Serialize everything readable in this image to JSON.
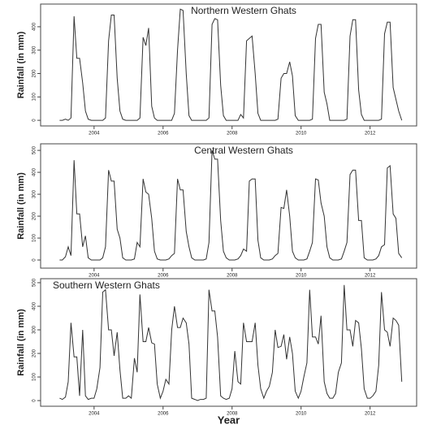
{
  "chart_data": [
    {
      "type": "line",
      "title": "Northern Western Ghats",
      "y_label": "Rainfall (in mm)",
      "color": "#333333",
      "x": [
        2003,
        2003.08,
        2003.17,
        2003.25,
        2003.33,
        2003.42,
        2003.5,
        2003.58,
        2003.67,
        2003.75,
        2003.83,
        2003.92,
        2004,
        2004.08,
        2004.17,
        2004.25,
        2004.33,
        2004.42,
        2004.5,
        2004.58,
        2004.67,
        2004.75,
        2004.83,
        2004.92,
        2005,
        2005.08,
        2005.17,
        2005.25,
        2005.33,
        2005.42,
        2005.5,
        2005.58,
        2005.67,
        2005.75,
        2005.83,
        2005.92,
        2006,
        2006.08,
        2006.17,
        2006.25,
        2006.33,
        2006.42,
        2006.5,
        2006.58,
        2006.67,
        2006.75,
        2006.83,
        2006.92,
        2007,
        2007.08,
        2007.17,
        2007.25,
        2007.33,
        2007.42,
        2007.5,
        2007.58,
        2007.67,
        2007.75,
        2007.83,
        2007.92,
        2008,
        2008.08,
        2008.17,
        2008.25,
        2008.33,
        2008.42,
        2008.5,
        2008.58,
        2008.67,
        2008.75,
        2008.83,
        2008.92,
        2009,
        2009.08,
        2009.17,
        2009.25,
        2009.33,
        2009.42,
        2009.5,
        2009.58,
        2009.67,
        2009.75,
        2009.83,
        2009.92,
        2010,
        2010.08,
        2010.17,
        2010.25,
        2010.33,
        2010.42,
        2010.5,
        2010.58,
        2010.67,
        2010.75,
        2010.83,
        2010.92,
        2011,
        2011.08,
        2011.17,
        2011.25,
        2011.33,
        2011.42,
        2011.5,
        2011.58,
        2011.67,
        2011.75,
        2011.83,
        2011.92,
        2012,
        2012.08,
        2012.17,
        2012.25,
        2012.33,
        2012.42,
        2012.5,
        2012.58,
        2012.67,
        2012.75,
        2012.83,
        2012.92
      ],
      "values": [
        0,
        0,
        5,
        0,
        10,
        445,
        265,
        265,
        160,
        40,
        5,
        0,
        0,
        0,
        0,
        0,
        10,
        340,
        450,
        450,
        180,
        40,
        5,
        0,
        0,
        0,
        0,
        0,
        10,
        355,
        320,
        395,
        60,
        10,
        0,
        0,
        0,
        0,
        0,
        0,
        30,
        300,
        475,
        470,
        200,
        20,
        0,
        0,
        0,
        0,
        0,
        0,
        10,
        410,
        435,
        430,
        150,
        20,
        0,
        0,
        0,
        0,
        0,
        25,
        10,
        340,
        350,
        360,
        200,
        30,
        0,
        0,
        0,
        0,
        0,
        0,
        5,
        180,
        200,
        200,
        250,
        190,
        20,
        0,
        0,
        0,
        0,
        0,
        5,
        350,
        410,
        410,
        120,
        70,
        0,
        0,
        0,
        0,
        0,
        0,
        5,
        360,
        430,
        430,
        130,
        25,
        0,
        0,
        0,
        0,
        0,
        0,
        5,
        370,
        420,
        420,
        140,
        90,
        40,
        0
      ],
      "xlim": [
        2002.45,
        2013.35
      ],
      "xticks": [
        2004,
        2006,
        2008,
        2010,
        2012
      ],
      "ylim": [
        -24,
        497
      ],
      "yticks": [
        0,
        100,
        200,
        300,
        400
      ]
    },
    {
      "type": "line",
      "title": "Central Western Ghats",
      "y_label": "Rainfall (in mm)",
      "color": "#333333",
      "x": [
        2003,
        2003.08,
        2003.17,
        2003.25,
        2003.33,
        2003.42,
        2003.5,
        2003.58,
        2003.67,
        2003.75,
        2003.83,
        2003.92,
        2004,
        2004.08,
        2004.17,
        2004.25,
        2004.33,
        2004.42,
        2004.5,
        2004.58,
        2004.67,
        2004.75,
        2004.83,
        2004.92,
        2005,
        2005.08,
        2005.17,
        2005.25,
        2005.33,
        2005.42,
        2005.5,
        2005.58,
        2005.67,
        2005.75,
        2005.83,
        2005.92,
        2006,
        2006.08,
        2006.17,
        2006.25,
        2006.33,
        2006.42,
        2006.5,
        2006.58,
        2006.67,
        2006.75,
        2006.83,
        2006.92,
        2007,
        2007.08,
        2007.17,
        2007.25,
        2007.33,
        2007.42,
        2007.5,
        2007.58,
        2007.67,
        2007.75,
        2007.83,
        2007.92,
        2008,
        2008.08,
        2008.17,
        2008.25,
        2008.33,
        2008.42,
        2008.5,
        2008.58,
        2008.67,
        2008.75,
        2008.83,
        2008.92,
        2009,
        2009.08,
        2009.17,
        2009.25,
        2009.33,
        2009.42,
        2009.5,
        2009.58,
        2009.67,
        2009.75,
        2009.83,
        2009.92,
        2010,
        2010.08,
        2010.17,
        2010.25,
        2010.33,
        2010.42,
        2010.5,
        2010.58,
        2010.67,
        2010.75,
        2010.83,
        2010.92,
        2011,
        2011.08,
        2011.17,
        2011.25,
        2011.33,
        2011.42,
        2011.5,
        2011.58,
        2011.67,
        2011.75,
        2011.83,
        2011.92,
        2012,
        2012.08,
        2012.17,
        2012.25,
        2012.33,
        2012.42,
        2012.5,
        2012.58,
        2012.67,
        2012.75,
        2012.83,
        2012.92
      ],
      "values": [
        0,
        0,
        15,
        60,
        20,
        455,
        210,
        210,
        60,
        110,
        10,
        0,
        0,
        0,
        0,
        10,
        60,
        410,
        360,
        360,
        140,
        100,
        10,
        0,
        0,
        0,
        5,
        80,
        60,
        370,
        310,
        300,
        190,
        40,
        5,
        0,
        0,
        0,
        5,
        20,
        30,
        370,
        320,
        320,
        130,
        60,
        10,
        0,
        0,
        0,
        0,
        5,
        80,
        500,
        460,
        460,
        180,
        40,
        10,
        0,
        0,
        0,
        5,
        20,
        50,
        40,
        360,
        370,
        370,
        90,
        10,
        0,
        0,
        0,
        5,
        20,
        30,
        240,
        235,
        320,
        200,
        40,
        10,
        0,
        0,
        0,
        5,
        40,
        80,
        370,
        365,
        260,
        200,
        60,
        10,
        0,
        0,
        0,
        5,
        40,
        80,
        390,
        410,
        410,
        180,
        180,
        10,
        0,
        0,
        0,
        5,
        20,
        60,
        70,
        420,
        430,
        210,
        190,
        30,
        10
      ],
      "xlim": [
        2002.45,
        2013.35
      ],
      "xticks": [
        2004,
        2006,
        2008,
        2010,
        2012
      ],
      "ylim": [
        -37,
        530
      ],
      "yticks": [
        0,
        100,
        200,
        300,
        400,
        500
      ]
    },
    {
      "type": "line",
      "title": "Southern Western Ghats",
      "y_label": "Rainfall (in mm)",
      "x_label": "Year",
      "color": "#333333",
      "x": [
        2003,
        2003.08,
        2003.17,
        2003.25,
        2003.33,
        2003.42,
        2003.5,
        2003.58,
        2003.67,
        2003.75,
        2003.83,
        2003.92,
        2004,
        2004.08,
        2004.17,
        2004.25,
        2004.33,
        2004.42,
        2004.5,
        2004.58,
        2004.67,
        2004.75,
        2004.83,
        2004.92,
        2005,
        2005.08,
        2005.17,
        2005.25,
        2005.33,
        2005.42,
        2005.5,
        2005.58,
        2005.67,
        2005.75,
        2005.83,
        2005.92,
        2006,
        2006.08,
        2006.17,
        2006.25,
        2006.33,
        2006.42,
        2006.5,
        2006.58,
        2006.67,
        2006.75,
        2006.83,
        2006.92,
        2007,
        2007.08,
        2007.17,
        2007.25,
        2007.33,
        2007.42,
        2007.5,
        2007.58,
        2007.67,
        2007.75,
        2007.83,
        2007.92,
        2008,
        2008.08,
        2008.17,
        2008.25,
        2008.33,
        2008.42,
        2008.5,
        2008.58,
        2008.67,
        2008.75,
        2008.83,
        2008.92,
        2009,
        2009.08,
        2009.17,
        2009.25,
        2009.33,
        2009.42,
        2009.5,
        2009.58,
        2009.67,
        2009.75,
        2009.83,
        2009.92,
        2010,
        2010.08,
        2010.17,
        2010.25,
        2010.33,
        2010.42,
        2010.5,
        2010.58,
        2010.67,
        2010.75,
        2010.83,
        2010.92,
        2011,
        2011.08,
        2011.17,
        2011.25,
        2011.33,
        2011.42,
        2011.5,
        2011.58,
        2011.67,
        2011.75,
        2011.83,
        2011.92,
        2012,
        2012.08,
        2012.17,
        2012.25,
        2012.33,
        2012.42,
        2012.5,
        2012.58,
        2012.67,
        2012.75,
        2012.83,
        2012.92
      ],
      "values": [
        10,
        5,
        15,
        80,
        330,
        185,
        185,
        20,
        300,
        20,
        5,
        10,
        10,
        50,
        140,
        460,
        470,
        300,
        300,
        190,
        290,
        130,
        10,
        10,
        20,
        10,
        180,
        120,
        450,
        250,
        250,
        310,
        245,
        240,
        70,
        10,
        40,
        90,
        70,
        300,
        400,
        310,
        310,
        350,
        330,
        240,
        10,
        5,
        0,
        5,
        5,
        10,
        470,
        380,
        380,
        270,
        20,
        10,
        5,
        10,
        50,
        210,
        80,
        70,
        330,
        250,
        250,
        250,
        330,
        150,
        50,
        10,
        40,
        60,
        120,
        300,
        225,
        230,
        280,
        175,
        270,
        200,
        40,
        10,
        40,
        100,
        160,
        470,
        270,
        270,
        240,
        360,
        80,
        30,
        10,
        10,
        30,
        120,
        160,
        490,
        300,
        300,
        230,
        340,
        330,
        220,
        50,
        10,
        10,
        20,
        40,
        150,
        460,
        300,
        290,
        230,
        350,
        340,
        320,
        80
      ],
      "xlim": [
        2002.45,
        2013.35
      ],
      "xticks": [
        2004,
        2006,
        2008,
        2010,
        2012
      ],
      "ylim": [
        -24,
        517
      ],
      "yticks": [
        0,
        100,
        200,
        300,
        400,
        500
      ]
    }
  ]
}
